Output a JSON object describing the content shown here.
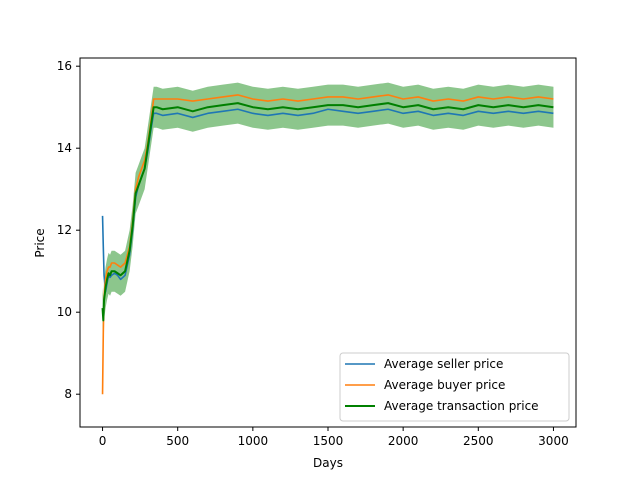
{
  "chart_data": {
    "type": "line",
    "title": "",
    "xlabel": "Days",
    "ylabel": "Price",
    "xlim": [
      -150,
      3150
    ],
    "ylim": [
      7.2,
      16.2
    ],
    "xticks": [
      0,
      500,
      1000,
      1500,
      2000,
      2500,
      3000
    ],
    "yticks": [
      8,
      10,
      12,
      14,
      16
    ],
    "grid": false,
    "legend_position": "lower-right",
    "series": [
      {
        "name": "Average seller price",
        "color": "#1f77b4",
        "x": [
          0,
          5,
          10,
          20,
          30,
          40,
          50,
          60,
          80,
          100,
          120,
          150,
          180,
          200,
          220,
          240,
          260,
          280,
          300,
          320,
          340,
          360,
          400,
          500,
          600,
          700,
          800,
          900,
          1000,
          1100,
          1200,
          1300,
          1400,
          1500,
          1600,
          1700,
          1800,
          1900,
          2000,
          2100,
          2200,
          2300,
          2400,
          2500,
          2600,
          2700,
          2800,
          2900,
          3000
        ],
        "y": [
          12.35,
          11.6,
          10.9,
          10.5,
          10.7,
          10.9,
          10.85,
          10.9,
          10.95,
          10.9,
          10.8,
          10.9,
          11.4,
          12.0,
          12.8,
          13.1,
          13.3,
          13.5,
          13.9,
          14.4,
          14.85,
          14.85,
          14.8,
          14.85,
          14.75,
          14.85,
          14.9,
          14.95,
          14.85,
          14.8,
          14.85,
          14.8,
          14.85,
          14.95,
          14.9,
          14.85,
          14.9,
          14.95,
          14.85,
          14.9,
          14.8,
          14.85,
          14.8,
          14.9,
          14.85,
          14.9,
          14.85,
          14.9,
          14.85
        ]
      },
      {
        "name": "Average buyer price",
        "color": "#ff7f0e",
        "x": [
          0,
          5,
          10,
          20,
          30,
          40,
          50,
          60,
          80,
          100,
          120,
          150,
          180,
          200,
          220,
          240,
          260,
          280,
          300,
          320,
          340,
          360,
          400,
          500,
          600,
          700,
          800,
          900,
          1000,
          1100,
          1200,
          1300,
          1400,
          1500,
          1600,
          1700,
          1800,
          1900,
          2000,
          2100,
          2200,
          2300,
          2400,
          2500,
          2600,
          2700,
          2800,
          2900,
          3000
        ],
        "y": [
          8.0,
          9.5,
          10.4,
          10.8,
          11.0,
          11.1,
          11.1,
          11.2,
          11.2,
          11.15,
          11.1,
          11.2,
          11.6,
          12.2,
          13.0,
          13.3,
          13.5,
          13.7,
          14.1,
          14.6,
          15.2,
          15.2,
          15.2,
          15.2,
          15.15,
          15.2,
          15.25,
          15.3,
          15.2,
          15.15,
          15.2,
          15.15,
          15.2,
          15.25,
          15.25,
          15.2,
          15.25,
          15.3,
          15.2,
          15.25,
          15.15,
          15.2,
          15.15,
          15.25,
          15.2,
          15.25,
          15.2,
          15.25,
          15.2
        ]
      },
      {
        "name": "Average transaction price",
        "color": "#008000",
        "x": [
          0,
          5,
          10,
          20,
          30,
          40,
          50,
          60,
          80,
          100,
          120,
          150,
          180,
          200,
          220,
          240,
          260,
          280,
          300,
          320,
          340,
          360,
          400,
          500,
          600,
          700,
          800,
          900,
          1000,
          1100,
          1200,
          1300,
          1400,
          1500,
          1600,
          1700,
          1800,
          1900,
          2000,
          2100,
          2200,
          2300,
          2400,
          2500,
          2600,
          2700,
          2800,
          2900,
          3000
        ],
        "y": [
          10.1,
          9.8,
          10.3,
          10.6,
          10.8,
          10.95,
          10.9,
          11.0,
          11.0,
          10.95,
          10.9,
          11.0,
          11.5,
          12.1,
          12.9,
          13.1,
          13.3,
          13.5,
          14.0,
          14.5,
          15.0,
          15.0,
          14.95,
          15.0,
          14.9,
          15.0,
          15.05,
          15.1,
          15.0,
          14.95,
          15.0,
          14.95,
          15.0,
          15.05,
          15.05,
          15.0,
          15.05,
          15.1,
          15.0,
          15.05,
          14.95,
          15.0,
          14.95,
          15.05,
          15.0,
          15.05,
          15.0,
          15.05,
          15.0
        ],
        "band_halfwidth": 0.5
      }
    ]
  }
}
